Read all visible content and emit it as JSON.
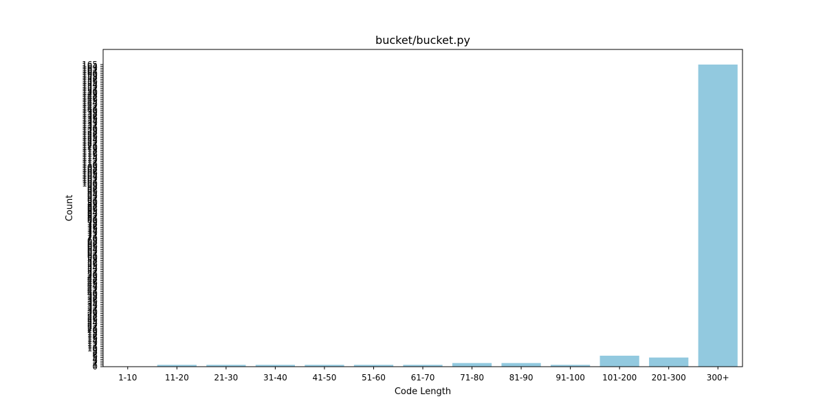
{
  "chart_data": {
    "type": "bar",
    "title": "bucket/bucket.py",
    "xlabel": "Code Length",
    "ylabel": "Count",
    "categories": [
      "1-10",
      "11-20",
      "21-30",
      "31-40",
      "41-50",
      "51-60",
      "61-70",
      "71-80",
      "81-90",
      "91-100",
      "101-200",
      "201-300",
      "300+"
    ],
    "values": [
      0,
      1,
      1,
      1,
      1,
      1,
      1,
      2,
      2,
      1,
      6,
      5,
      165
    ],
    "ylim": [
      0,
      165
    ],
    "yticks": [
      0,
      1,
      2,
      3,
      4,
      5,
      6,
      7,
      8,
      9,
      10,
      11,
      12,
      13,
      14,
      15,
      16,
      17,
      18,
      19,
      20,
      21,
      22,
      23,
      24,
      25,
      26,
      27,
      28,
      29,
      30,
      31,
      32,
      33,
      34,
      35,
      36,
      37,
      38,
      39,
      40,
      41,
      42,
      43,
      44,
      45,
      46,
      47,
      48,
      49,
      50,
      51,
      52,
      53,
      54,
      55,
      56,
      57,
      58,
      59,
      60,
      61,
      62,
      63,
      64,
      65,
      66,
      67,
      68,
      69,
      70,
      71,
      72,
      73,
      74,
      75,
      76,
      77,
      78,
      79,
      80,
      81,
      82,
      83,
      84,
      85,
      86,
      87,
      88,
      89,
      90,
      91,
      92,
      93,
      94,
      95,
      96,
      97,
      98,
      99,
      100,
      101,
      102,
      103,
      104,
      105,
      106,
      107,
      108,
      109,
      110,
      111,
      112,
      113,
      114,
      115,
      116,
      117,
      118,
      119,
      120,
      121,
      122,
      123,
      124,
      125,
      126,
      127,
      128,
      129,
      130,
      131,
      132,
      133,
      134,
      135,
      136,
      137,
      138,
      139,
      140,
      141,
      142,
      143,
      144,
      145,
      146,
      147,
      148,
      149,
      150,
      151,
      152,
      153,
      154,
      155,
      156,
      157,
      158,
      159,
      160,
      161,
      162,
      163,
      164,
      165
    ],
    "bar_color": "#92c9df",
    "grid": false,
    "legend": false
  }
}
